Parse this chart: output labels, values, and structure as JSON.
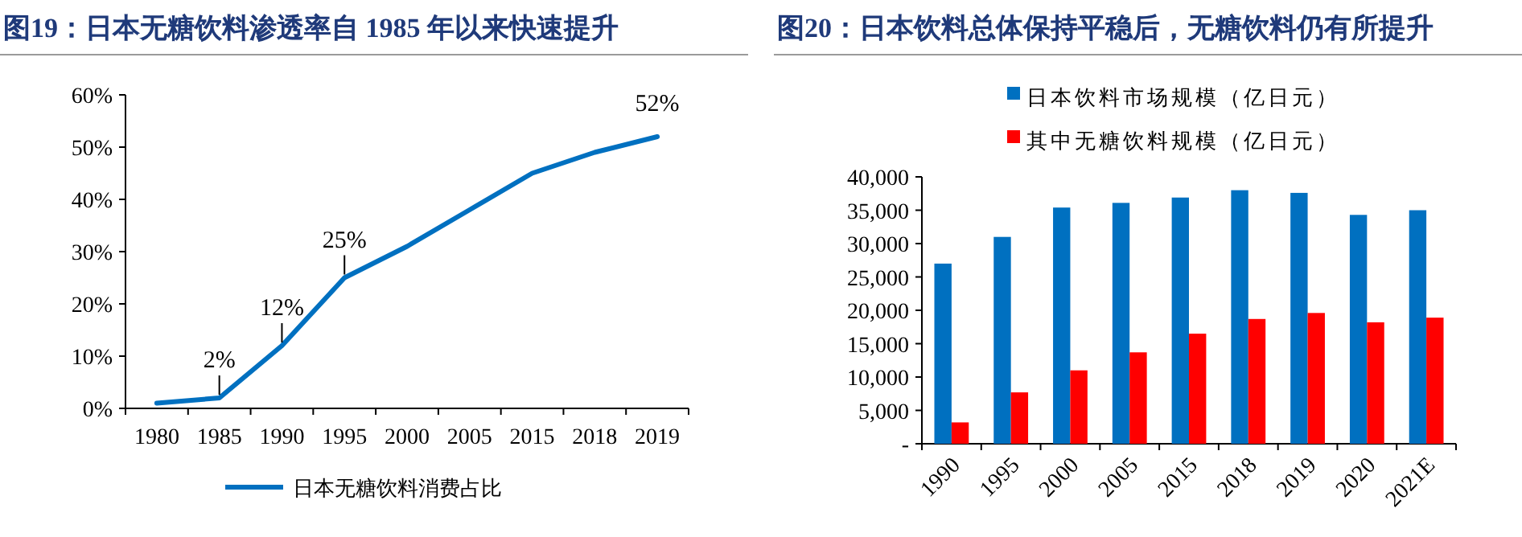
{
  "chart_data": [
    {
      "type": "line",
      "title": "图19：日本无糖饮料渗透率自 1985 年以来快速提升",
      "categories": [
        "1980",
        "1985",
        "1990",
        "1995",
        "2000",
        "2005",
        "2015",
        "2018",
        "2019"
      ],
      "series": [
        {
          "name": "日本无糖饮料消费占比",
          "color": "#0070c0",
          "values": [
            1,
            2,
            12,
            25,
            31,
            38,
            45,
            49,
            52
          ],
          "value_labels": [
            null,
            "2%",
            "12%",
            "25%",
            null,
            null,
            null,
            null,
            "52%"
          ]
        }
      ],
      "ylim": [
        0,
        60
      ],
      "yticks": [
        {
          "value": 0,
          "label": "0%"
        },
        {
          "value": 10,
          "label": "10%"
        },
        {
          "value": 20,
          "label": "20%"
        },
        {
          "value": 30,
          "label": "30%"
        },
        {
          "value": 40,
          "label": "40%"
        },
        {
          "value": 50,
          "label": "50%"
        },
        {
          "value": 60,
          "label": "60%"
        }
      ],
      "legend": "bottom"
    },
    {
      "type": "bar",
      "title": "图20：日本饮料总体保持平稳后，无糖饮料仍有所提升",
      "categories": [
        "1990",
        "1995",
        "2000",
        "2005",
        "2015",
        "2018",
        "2019",
        "2020",
        "2021E"
      ],
      "series": [
        {
          "name": "日本饮料市场规模（亿日元）",
          "color": "#0070c0",
          "values": [
            27000,
            31000,
            35400,
            36100,
            36900,
            38000,
            37600,
            34300,
            35000
          ]
        },
        {
          "name": "其中无糖饮料规模（亿日元）",
          "color": "#ff0000",
          "values": [
            3200,
            7700,
            11000,
            13700,
            16500,
            18700,
            19600,
            18200,
            18900
          ]
        }
      ],
      "ylim": [
        0,
        40000
      ],
      "yticks": [
        {
          "value": 0,
          "label": "-"
        },
        {
          "value": 5000,
          "label": "5,000"
        },
        {
          "value": 10000,
          "label": "10,000"
        },
        {
          "value": 15000,
          "label": "15,000"
        },
        {
          "value": 20000,
          "label": "20,000"
        },
        {
          "value": 25000,
          "label": "25,000"
        },
        {
          "value": 30000,
          "label": "30,000"
        },
        {
          "value": 35000,
          "label": "35,000"
        },
        {
          "value": 40000,
          "label": "40,000"
        }
      ],
      "legend": "top"
    }
  ]
}
